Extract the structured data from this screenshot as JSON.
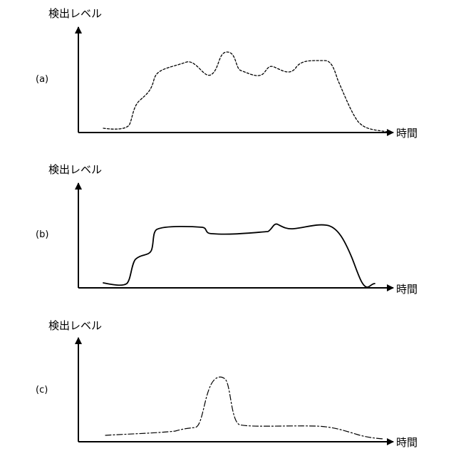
{
  "panels": [
    {
      "label": "(a)",
      "y_axis_label": "検出レベル",
      "x_axis_label": "時間",
      "line_style": "dotted"
    },
    {
      "label": "(b)",
      "y_axis_label": "検出レベル",
      "x_axis_label": "時間",
      "line_style": "solid"
    },
    {
      "label": "(c)",
      "y_axis_label": "検出レベル",
      "x_axis_label": "時間",
      "line_style": "dash-dot"
    }
  ]
}
